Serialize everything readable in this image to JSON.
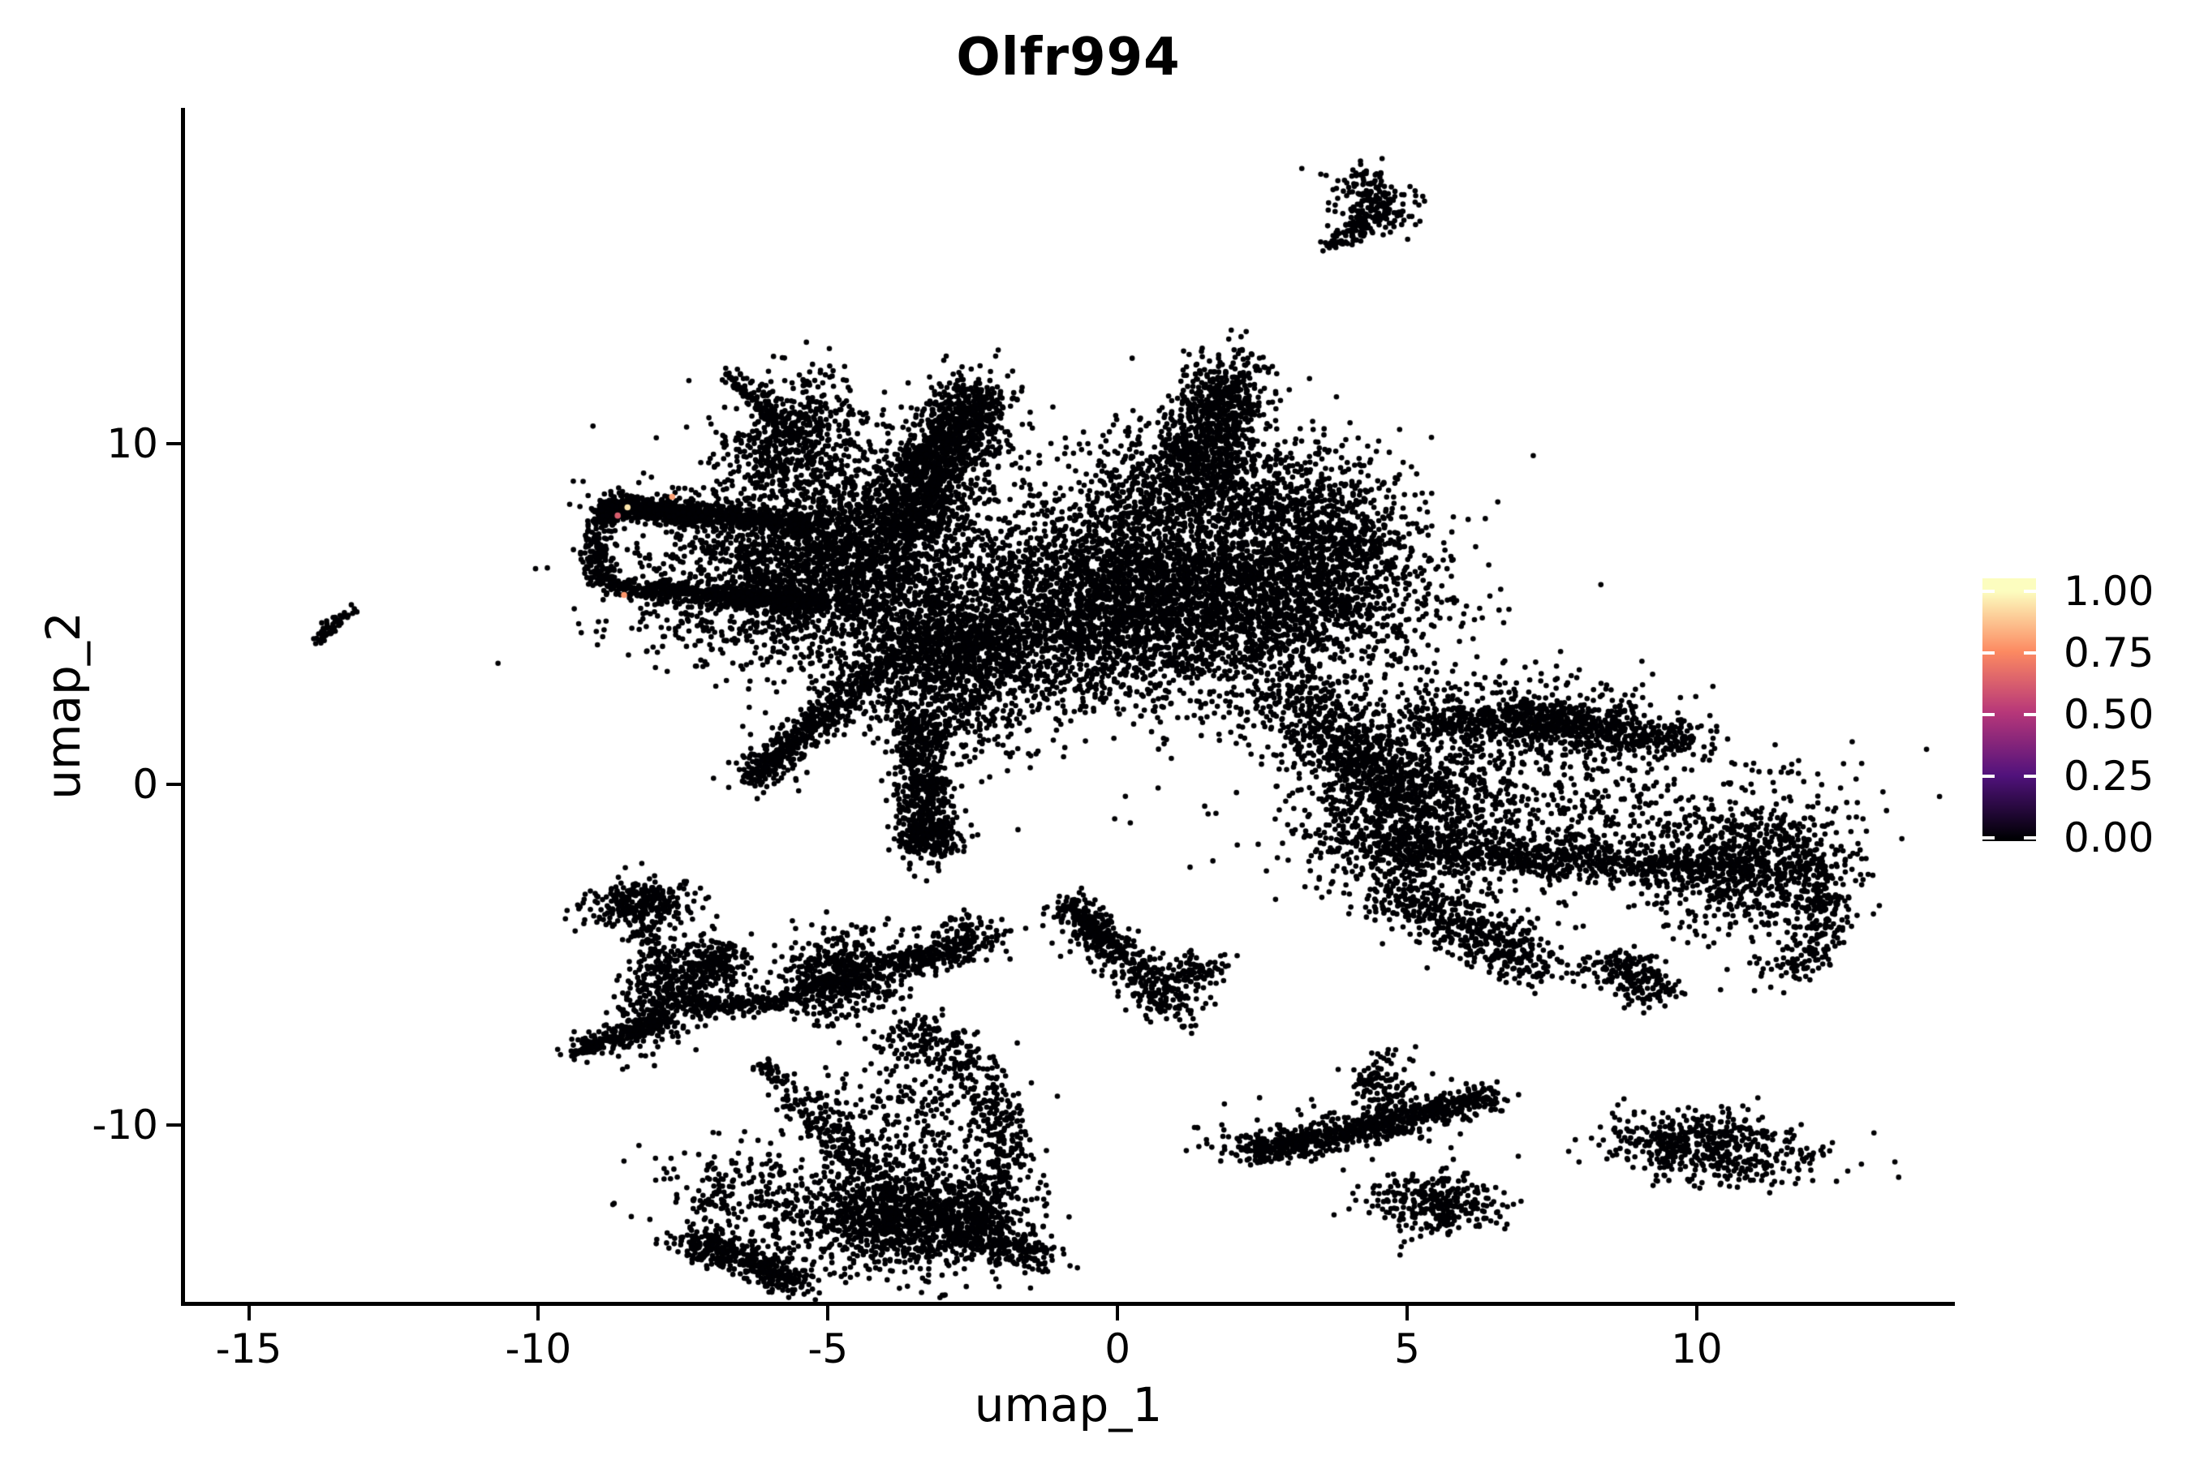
{
  "title": "Olfr994",
  "axes": {
    "x": {
      "label": "umap_1",
      "tick_values": [
        -15,
        -10,
        -5,
        0,
        5,
        10
      ],
      "tick_labels": [
        "-15",
        "-10",
        "-5",
        "0",
        "5",
        "10"
      ],
      "lim": [
        -16.1,
        14.4
      ]
    },
    "y": {
      "label": "umap_2",
      "tick_values": [
        10,
        0,
        -10
      ],
      "tick_labels": [
        "10",
        "0",
        "-10"
      ],
      "lim": [
        -15.2,
        19.8
      ]
    }
  },
  "legend": {
    "tick_values": [
      1.0,
      0.75,
      0.5,
      0.25,
      0.0
    ],
    "tick_labels": [
      "1.00",
      "0.75",
      "0.50",
      "0.25",
      "0.00"
    ],
    "colormap_name": "magma",
    "colormap_stops": [
      [
        0,
        "#000004"
      ],
      [
        0.25,
        "#51127c"
      ],
      [
        0.5,
        "#b73779"
      ],
      [
        0.75,
        "#fc8961"
      ],
      [
        1,
        "#fcfdbf"
      ]
    ]
  },
  "chart_data": {
    "type": "scatter",
    "title": "Olfr994",
    "xlabel": "umap_1",
    "ylabel": "umap_2",
    "xlim": [
      -16.1,
      14.4
    ],
    "ylim": [
      -15.2,
      19.8
    ],
    "grid": false,
    "legend_position": "right",
    "point_radius_px": 3.3,
    "base_value": 0,
    "seed": 42,
    "clusters": [
      {
        "t": "band",
        "x1": -6.75,
        "y1": 12.1,
        "x2": -5.55,
        "y2": 10.1,
        "w": 0.1,
        "n": 150
      },
      {
        "t": "blob",
        "x": -5.62,
        "y": 10.15,
        "sx": 0.5,
        "sy": 1.0,
        "rot": -15,
        "n": 420
      },
      {
        "t": "band",
        "x1": -8.8,
        "y1": 8.25,
        "x2": -5.2,
        "y2": 7.55,
        "w": 0.16,
        "n": 680
      },
      {
        "t": "band",
        "x1": -8.85,
        "y1": 8.05,
        "x2": -7.3,
        "y2": 7.95,
        "w": 0.18,
        "n": 240
      },
      {
        "t": "arc",
        "x": -8.62,
        "y": 6.95,
        "rx": 0.38,
        "ry": 1.18,
        "a1": 100,
        "a2": 260,
        "w": 0.13,
        "n": 240
      },
      {
        "t": "band",
        "x1": -8.55,
        "y1": 5.75,
        "x2": -5.1,
        "y2": 5.3,
        "w": 0.16,
        "n": 620
      },
      {
        "t": "blob",
        "x": -7.1,
        "y": 6.6,
        "sx": 1.1,
        "sy": 0.75,
        "rot": 0,
        "n": 80
      },
      {
        "t": "blob",
        "x": -4.95,
        "y": 6.6,
        "sx": 1.3,
        "sy": 1.45,
        "rot": 0,
        "n": 2400
      },
      {
        "t": "blob",
        "x": -4.85,
        "y": 6.5,
        "sx": 1.95,
        "sy": 2.1,
        "rot": 0,
        "n": 340
      },
      {
        "t": "band",
        "x1": -3.7,
        "y1": 7.35,
        "x2": -2.45,
        "y2": 11.4,
        "w": 0.4,
        "n": 1050
      },
      {
        "t": "blob",
        "x": -2.55,
        "y": 11.15,
        "sx": 0.35,
        "sy": 0.75,
        "rot": 0,
        "n": 130
      },
      {
        "t": "band",
        "x1": -3.5,
        "y1": 9.3,
        "x2": -2.75,
        "y2": 10.4,
        "w": 0.22,
        "n": 160
      },
      {
        "t": "band",
        "x1": -6.35,
        "y1": 0.1,
        "x2": -3.6,
        "y2": 4.2,
        "w": 0.26,
        "n": 520
      },
      {
        "t": "band",
        "x1": -6.3,
        "y1": 0.2,
        "x2": -5.1,
        "y2": 2.0,
        "w": 0.11,
        "n": 140
      },
      {
        "t": "blob",
        "x": -3.0,
        "y": 3.3,
        "sx": 0.75,
        "sy": 1.3,
        "rot": 15,
        "n": 850
      },
      {
        "t": "blob",
        "x": -2.62,
        "y": 4.3,
        "sx": 0.6,
        "sy": 0.85,
        "rot": 0,
        "n": 380
      },
      {
        "t": "band",
        "x1": -3.45,
        "y1": 1.9,
        "x2": -3.22,
        "y2": -1.9,
        "w": 0.24,
        "n": 600
      },
      {
        "t": "blob",
        "x": -3.27,
        "y": -1.55,
        "sx": 0.3,
        "sy": 0.4,
        "rot": 0,
        "n": 110
      },
      {
        "t": "blob",
        "x": -1.6,
        "y": 5.6,
        "sx": 1.0,
        "sy": 1.5,
        "rot": 0,
        "n": 100
      },
      {
        "t": "blob",
        "x": -5.3,
        "y": 9.35,
        "sx": 1.0,
        "sy": 0.85,
        "rot": 0,
        "n": 120
      },
      {
        "t": "blob",
        "x": -7.5,
        "y": 4.6,
        "sx": 0.8,
        "sy": 0.5,
        "rot": 0,
        "n": 55
      },
      {
        "t": "band",
        "x1": 1.92,
        "y1": 11.75,
        "x2": 1.28,
        "y2": 8.9,
        "w": 0.42,
        "n": 780
      },
      {
        "t": "blob",
        "x": 1.95,
        "y": 11.9,
        "sx": 0.4,
        "sy": 0.5,
        "rot": 0,
        "n": 110
      },
      {
        "t": "blob",
        "x": 1.3,
        "y": 5.6,
        "sx": 1.95,
        "sy": 1.45,
        "rot": -5,
        "n": 3900
      },
      {
        "t": "blob",
        "x": -0.6,
        "y": 4.6,
        "sx": 1.1,
        "sy": 1.3,
        "rot": 0,
        "n": 650
      },
      {
        "t": "blob",
        "x": -1.0,
        "y": 5.3,
        "sx": 1.6,
        "sy": 1.8,
        "rot": 0,
        "n": 240
      },
      {
        "t": "band",
        "x1": -0.3,
        "y1": 8.3,
        "x2": 3.2,
        "y2": 8.55,
        "w": 0.5,
        "n": 480
      },
      {
        "t": "blob",
        "x": 3.8,
        "y": 7.0,
        "sx": 0.72,
        "sy": 1.05,
        "rot": 0,
        "n": 640
      },
      {
        "t": "blob",
        "x": 2.9,
        "y": 9.2,
        "sx": 1.1,
        "sy": 0.95,
        "rot": 0,
        "n": 150
      },
      {
        "t": "blob",
        "x": 0.6,
        "y": 9.7,
        "sx": 1.0,
        "sy": 0.65,
        "rot": 0,
        "n": 110
      },
      {
        "t": "band",
        "x1": 2.9,
        "y1": 2.7,
        "x2": 4.55,
        "y2": 0.35,
        "w": 0.5,
        "n": 420
      },
      {
        "t": "blob",
        "x": 4.2,
        "y": 1.6,
        "sx": 1.15,
        "sy": 1.2,
        "rot": 0,
        "n": 130
      },
      {
        "t": "blob",
        "x": 4.9,
        "y": -0.9,
        "sx": 0.8,
        "sy": 1.1,
        "rot": 0,
        "n": 760
      },
      {
        "t": "band",
        "x1": 5.3,
        "y1": 1.9,
        "x2": 10.0,
        "y2": 1.25,
        "w": 0.28,
        "n": 660
      },
      {
        "t": "band",
        "x1": 6.6,
        "y1": 2.2,
        "x2": 8.7,
        "y2": 1.85,
        "w": 0.24,
        "n": 240
      },
      {
        "t": "blob",
        "x": 6.5,
        "y": 1.1,
        "sx": 1.6,
        "sy": 0.85,
        "rot": 0,
        "n": 260
      },
      {
        "t": "band",
        "x1": 4.3,
        "y1": -1.9,
        "x2": 11.0,
        "y2": -2.55,
        "w": 0.3,
        "n": 760
      },
      {
        "t": "blob",
        "x": 7.6,
        "y": -1.2,
        "sx": 2.2,
        "sy": 1.05,
        "rot": 0,
        "n": 440
      },
      {
        "t": "band",
        "x1": 4.7,
        "y1": -3.2,
        "x2": 7.3,
        "y2": -5.3,
        "w": 0.38,
        "n": 520
      },
      {
        "t": "blob",
        "x": 11.05,
        "y": -2.4,
        "sx": 0.8,
        "sy": 1.05,
        "rot": 0,
        "n": 600
      },
      {
        "t": "arc",
        "x": 10.9,
        "y": -3.6,
        "rx": 1.3,
        "ry": 2.2,
        "a1": -62,
        "a2": 55,
        "w": 0.26,
        "n": 280
      },
      {
        "t": "band",
        "x1": 8.4,
        "y1": -5.15,
        "x2": 9.4,
        "y2": -6.15,
        "w": 0.3,
        "n": 210
      },
      {
        "t": "blob",
        "x": 8.0,
        "y": -1.6,
        "sx": 2.6,
        "sy": 1.5,
        "rot": 0,
        "n": 280
      },
      {
        "t": "band",
        "x1": 4.0,
        "y1": 0.8,
        "x2": 4.8,
        "y2": -0.2,
        "w": 0.5,
        "n": 130
      },
      {
        "t": "blob",
        "x": 7.0,
        "y": 2.7,
        "sx": 1.5,
        "sy": 0.45,
        "rot": 0,
        "n": 80
      },
      {
        "t": "blob",
        "x": -8.25,
        "y": -3.5,
        "sx": 0.45,
        "sy": 0.38,
        "rot": 0,
        "n": 280
      },
      {
        "t": "band",
        "x1": -8.2,
        "y1": -4.1,
        "x2": -7.9,
        "y2": -5.6,
        "w": 0.14,
        "n": 65
      },
      {
        "t": "blob",
        "x": -6.9,
        "y": -5.3,
        "sx": 0.3,
        "sy": 0.35,
        "rot": 0,
        "n": 150
      },
      {
        "t": "blob",
        "x": -7.75,
        "y": -6.1,
        "sx": 0.4,
        "sy": 0.8,
        "rot": -20,
        "n": 420
      },
      {
        "t": "band",
        "x1": -7.8,
        "y1": -6.9,
        "x2": -9.35,
        "y2": -7.85,
        "w": 0.15,
        "n": 240
      },
      {
        "t": "band",
        "x1": -7.3,
        "y1": -6.55,
        "x2": -6.0,
        "y2": -6.45,
        "w": 0.15,
        "n": 150
      },
      {
        "t": "band",
        "x1": -6.0,
        "y1": -6.45,
        "x2": -4.5,
        "y2": -5.62,
        "w": 0.13,
        "n": 130
      },
      {
        "t": "blob",
        "x": -4.85,
        "y": -5.6,
        "sx": 0.55,
        "sy": 0.65,
        "rot": 0,
        "n": 480
      },
      {
        "t": "band",
        "x1": -4.3,
        "y1": -5.45,
        "x2": -2.6,
        "y2": -4.75,
        "w": 0.22,
        "n": 240
      },
      {
        "t": "blob",
        "x": -2.55,
        "y": -4.5,
        "sx": 0.3,
        "sy": 0.35,
        "rot": 0,
        "n": 110
      },
      {
        "t": "band",
        "x1": -6.15,
        "y1": -8.2,
        "x2": -5.82,
        "y2": -8.75,
        "w": 0.1,
        "n": 40
      },
      {
        "t": "arc",
        "x": -4.3,
        "y": -10.6,
        "rx": 2.35,
        "ry": 3.5,
        "a1": -50,
        "a2": 78,
        "w": 0.28,
        "n": 520
      },
      {
        "t": "blob",
        "x": -3.6,
        "y": -9.7,
        "sx": 0.8,
        "sy": 1.1,
        "rot": 0,
        "n": 230
      },
      {
        "t": "blob",
        "x": -3.75,
        "y": -12.7,
        "sx": 0.95,
        "sy": 0.78,
        "rot": 0,
        "n": 1300
      },
      {
        "t": "band",
        "x1": -2.8,
        "y1": -12.9,
        "x2": -1.4,
        "y2": -13.95,
        "w": 0.3,
        "n": 260
      },
      {
        "t": "band",
        "x1": -7.45,
        "y1": -13.3,
        "x2": -5.5,
        "y2": -14.65,
        "w": 0.24,
        "n": 400
      },
      {
        "t": "blob",
        "x": -6.5,
        "y": -12.0,
        "sx": 0.9,
        "sy": 0.75,
        "rot": 0,
        "n": 220
      },
      {
        "t": "band",
        "x1": -5.5,
        "y1": -9.2,
        "x2": -4.2,
        "y2": -11.6,
        "w": 0.25,
        "n": 220
      },
      {
        "t": "band",
        "x1": -0.88,
        "y1": -3.5,
        "x2": 1.08,
        "y2": -6.7,
        "w": 0.28,
        "n": 400
      },
      {
        "t": "band",
        "x1": -0.9,
        "y1": -3.42,
        "x2": 0.0,
        "y2": -4.9,
        "w": 0.1,
        "n": 110
      },
      {
        "t": "blob",
        "x": 1.3,
        "y": -5.5,
        "sx": 0.3,
        "sy": 0.3,
        "rot": 0,
        "n": 100
      },
      {
        "t": "band",
        "x1": 2.18,
        "y1": -10.82,
        "x2": 4.4,
        "y2": -10.05,
        "w": 0.2,
        "n": 430
      },
      {
        "t": "band",
        "x1": 4.4,
        "y1": -10.05,
        "x2": 6.52,
        "y2": -9.12,
        "w": 0.2,
        "n": 380
      },
      {
        "t": "blob",
        "x": 4.62,
        "y": -8.9,
        "sx": 0.3,
        "sy": 0.52,
        "rot": 0,
        "n": 130
      },
      {
        "t": "blob",
        "x": 3.4,
        "y": -10.2,
        "sx": 1.2,
        "sy": 0.5,
        "rot": 0,
        "n": 80
      },
      {
        "t": "blob",
        "x": 5.5,
        "y": -12.35,
        "sx": 0.58,
        "sy": 0.4,
        "rot": 0,
        "n": 310
      },
      {
        "t": "blob",
        "x": 10.3,
        "y": -10.7,
        "sx": 0.92,
        "sy": 0.52,
        "rot": -10,
        "n": 480
      },
      {
        "t": "band",
        "x1": 9.1,
        "y1": -10.45,
        "x2": 9.9,
        "y2": -10.6,
        "w": 0.14,
        "n": 45
      },
      {
        "t": "blob",
        "x": 4.45,
        "y": 17.1,
        "sx": 0.32,
        "sy": 0.5,
        "rot": 20,
        "n": 190
      },
      {
        "t": "band",
        "x1": 4.3,
        "y1": 16.6,
        "x2": 3.68,
        "y2": 15.8,
        "w": 0.13,
        "n": 85
      },
      {
        "t": "band",
        "x1": -13.85,
        "y1": 4.15,
        "x2": -13.25,
        "y2": 5.1,
        "w": 0.09,
        "n": 60
      }
    ],
    "highlighted_points": [
      {
        "x": -8.46,
        "y": 8.12,
        "v": 0.95
      },
      {
        "x": -7.69,
        "y": 8.43,
        "v": 0.8
      },
      {
        "x": -8.63,
        "y": 7.88,
        "v": 0.62
      },
      {
        "x": -8.52,
        "y": 5.55,
        "v": 0.78
      }
    ]
  }
}
